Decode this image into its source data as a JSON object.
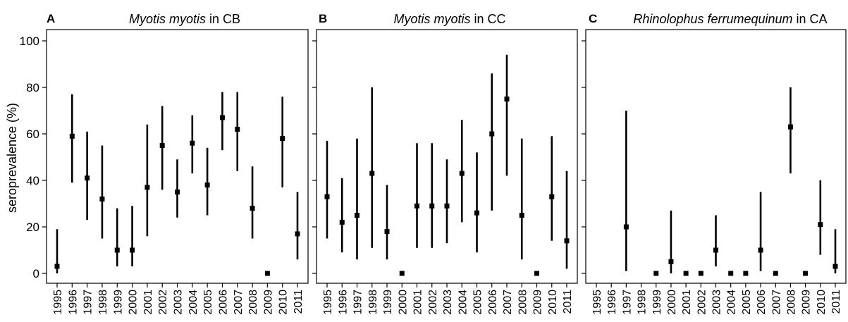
{
  "chart_data": [
    {
      "type": "scatter",
      "panel_label": "A",
      "title": {
        "italic": "Myotis myotis",
        "rest": " in CB"
      },
      "xlabel": "",
      "ylabel": "seroprevalence (%)",
      "ylim": [
        0,
        100
      ],
      "yticks": [
        "0",
        "20",
        "40",
        "60",
        "80",
        "100"
      ],
      "categories": [
        "1995",
        "1996",
        "1997",
        "1998",
        "1999",
        "2000",
        "2001",
        "2002",
        "2003",
        "2004",
        "2005",
        "2006",
        "2007",
        "2008",
        "2009",
        "2010",
        "2011"
      ],
      "values": [
        3,
        59,
        41,
        32,
        10,
        10,
        37,
        55,
        35,
        56,
        38,
        67,
        62,
        28,
        0,
        58,
        17
      ],
      "lower": [
        0,
        39,
        23,
        15,
        3,
        3,
        16,
        36,
        24,
        43,
        25,
        53,
        44,
        15,
        null,
        37,
        6
      ],
      "upper": [
        19,
        77,
        61,
        55,
        28,
        29,
        64,
        72,
        49,
        68,
        54,
        78,
        78,
        46,
        null,
        76,
        35
      ]
    },
    {
      "type": "scatter",
      "panel_label": "B",
      "title": {
        "italic": "Myotis myotis",
        "rest": " in CC"
      },
      "xlabel": "",
      "ylabel": "",
      "ylim": [
        0,
        100
      ],
      "categories": [
        "1995",
        "1996",
        "1997",
        "1998",
        "1999",
        "2000",
        "2001",
        "2002",
        "2003",
        "2004",
        "2005",
        "2006",
        "2007",
        "2008",
        "2009",
        "2010",
        "2011"
      ],
      "values": [
        33,
        22,
        25,
        43,
        18,
        0,
        29,
        29,
        29,
        43,
        26,
        60,
        75,
        25,
        0,
        33,
        14
      ],
      "lower": [
        15,
        9,
        6,
        11,
        6,
        null,
        11,
        11,
        13,
        22,
        9,
        27,
        42,
        6,
        null,
        14,
        2
      ],
      "upper": [
        57,
        41,
        58,
        80,
        38,
        null,
        56,
        56,
        49,
        66,
        52,
        86,
        94,
        58,
        null,
        59,
        44
      ]
    },
    {
      "type": "scatter",
      "panel_label": "C",
      "title": {
        "italic": "Rhinolophus ferrumequinum",
        "rest": " in CA"
      },
      "xlabel": "",
      "ylabel": "",
      "ylim": [
        0,
        100
      ],
      "categories": [
        "1995",
        "1996",
        "1997",
        "1998",
        "1999",
        "2000",
        "2001",
        "2002",
        "2003",
        "2004",
        "2005",
        "2006",
        "2007",
        "2008",
        "2009",
        "2010",
        "2011"
      ],
      "values": [
        null,
        null,
        20,
        null,
        0,
        5,
        0,
        0,
        10,
        0,
        0,
        10,
        0,
        63,
        0,
        21,
        3
      ],
      "lower": [
        null,
        null,
        1,
        null,
        null,
        0,
        null,
        null,
        3,
        null,
        null,
        1,
        null,
        43,
        null,
        8,
        0
      ],
      "upper": [
        null,
        null,
        70,
        null,
        null,
        27,
        null,
        null,
        25,
        null,
        null,
        35,
        null,
        80,
        null,
        40,
        19
      ]
    }
  ]
}
